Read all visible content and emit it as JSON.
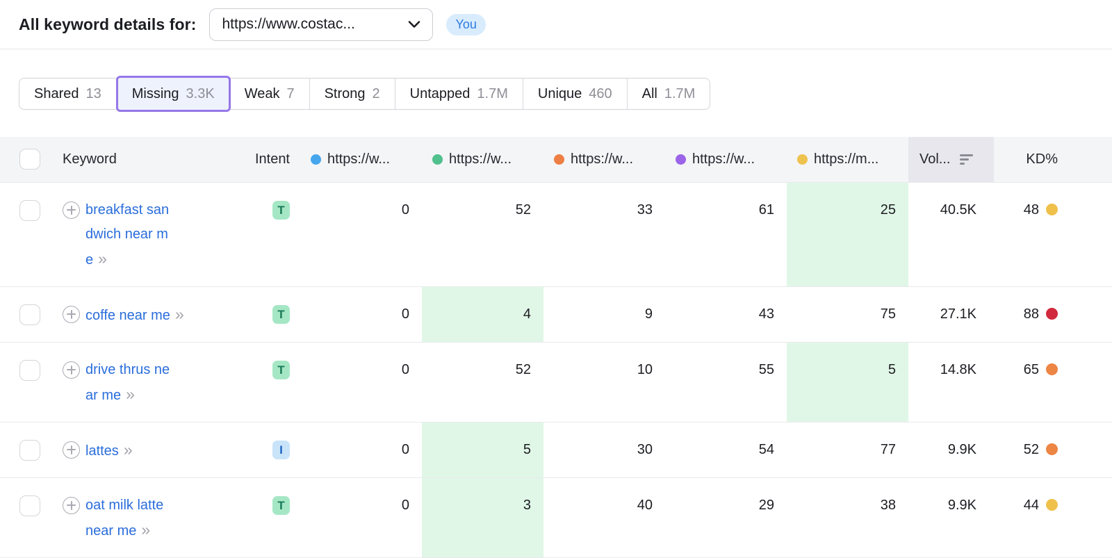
{
  "header": {
    "title": "All keyword details for:",
    "domain_selector_value": "https://www.costac...",
    "you_badge": "You"
  },
  "tabs": [
    {
      "label": "Shared",
      "count": "13",
      "active": false
    },
    {
      "label": "Missing",
      "count": "3.3K",
      "active": true
    },
    {
      "label": "Weak",
      "count": "7",
      "active": false
    },
    {
      "label": "Strong",
      "count": "2",
      "active": false
    },
    {
      "label": "Untapped",
      "count": "1.7M",
      "active": false
    },
    {
      "label": "Unique",
      "count": "460",
      "active": false
    },
    {
      "label": "All",
      "count": "1.7M",
      "active": false
    }
  ],
  "colors": {
    "accent_purple": "#9577e8",
    "active_tab_bg": "#eef2fc",
    "best_position_cell_bg": "#e0f7e7",
    "link_blue": "#2a6ddb"
  },
  "icons": {
    "double_chevron": "»"
  },
  "table": {
    "header": {
      "keyword": "Keyword",
      "intent": "Intent",
      "sites": [
        {
          "label": "https://w...",
          "dot_color": "#45a6ee"
        },
        {
          "label": "https://w...",
          "dot_color": "#50c08c"
        },
        {
          "label": "https://w...",
          "dot_color": "#ee7f44"
        },
        {
          "label": "https://w...",
          "dot_color": "#9c64e9"
        },
        {
          "label": "https://m...",
          "dot_color": "#eec24e"
        }
      ],
      "volume": "Vol...",
      "kd": "KD%"
    },
    "rows": [
      {
        "keyword": "breakfast sandwich near me",
        "keyword_lines": [
          "breakfast san",
          "dwich near m",
          "e"
        ],
        "intent": "T",
        "positions": [
          "0",
          "52",
          "33",
          "61",
          "25"
        ],
        "best_position_index": 4,
        "volume": "40.5K",
        "kd": "48",
        "kd_color": "#efc14b"
      },
      {
        "keyword": "coffe near me",
        "keyword_lines": [
          "coffe near me"
        ],
        "intent": "T",
        "positions": [
          "0",
          "4",
          "9",
          "43",
          "75"
        ],
        "best_position_index": 1,
        "volume": "27.1K",
        "kd": "88",
        "kd_color": "#d1293d"
      },
      {
        "keyword": "drive thrus near me",
        "keyword_lines": [
          "drive thrus ne",
          "ar me"
        ],
        "intent": "T",
        "positions": [
          "0",
          "52",
          "10",
          "55",
          "5"
        ],
        "best_position_index": 4,
        "volume": "14.8K",
        "kd": "65",
        "kd_color": "#ed8544"
      },
      {
        "keyword": "lattes",
        "keyword_lines": [
          "lattes"
        ],
        "intent": "I",
        "positions": [
          "0",
          "5",
          "30",
          "54",
          "77"
        ],
        "best_position_index": 1,
        "volume": "9.9K",
        "kd": "52",
        "kd_color": "#ed8544"
      },
      {
        "keyword": "oat milk latte near me",
        "keyword_lines": [
          "oat milk latte",
          "near me"
        ],
        "intent": "T",
        "positions": [
          "0",
          "3",
          "40",
          "29",
          "38"
        ],
        "best_position_index": 1,
        "volume": "9.9K",
        "kd": "44",
        "kd_color": "#efc14b"
      }
    ]
  }
}
